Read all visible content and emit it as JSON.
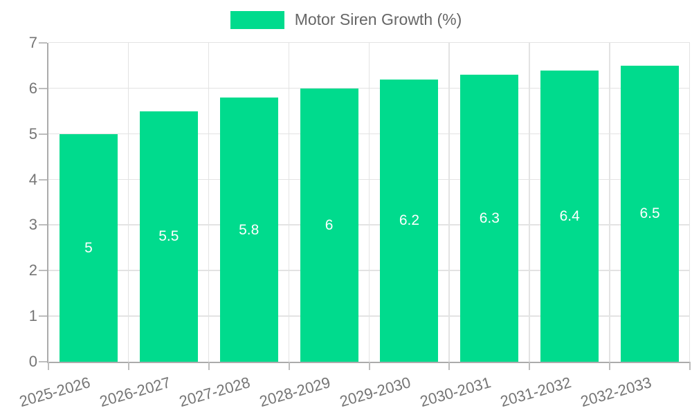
{
  "legend": {
    "label": "Motor Siren Growth (%)"
  },
  "chart_data": {
    "type": "bar",
    "title": "Motor Siren Growth (%)",
    "series_name": "Motor Siren Growth (%)",
    "categories": [
      "2025-2026",
      "2026-2027",
      "2027-2028",
      "2028-2029",
      "2029-2030",
      "2030-2031",
      "2031-2032",
      "2032-2033"
    ],
    "values": [
      5,
      5.5,
      5.8,
      6,
      6.2,
      6.3,
      6.4,
      6.5
    ],
    "data_labels": [
      "5",
      "5.5",
      "5.8",
      "6",
      "6.2",
      "6.3",
      "6.4",
      "6.5"
    ],
    "xlabel": "",
    "ylabel": "",
    "ylim": [
      0,
      7
    ],
    "y_ticks": [
      0,
      1,
      2,
      3,
      4,
      5,
      6,
      7
    ],
    "grid": true,
    "legend_position": "top",
    "x_label_rotation_deg": -16,
    "colors": {
      "bar": "#00DB8D",
      "data_label": "#ffffff",
      "grid": "#e3e3e3",
      "axis_line": "#ababab",
      "tick_mark": "#bdbdbd",
      "tick_label": "#757575",
      "legend_text": "#666666",
      "background": "#ffffff"
    }
  }
}
